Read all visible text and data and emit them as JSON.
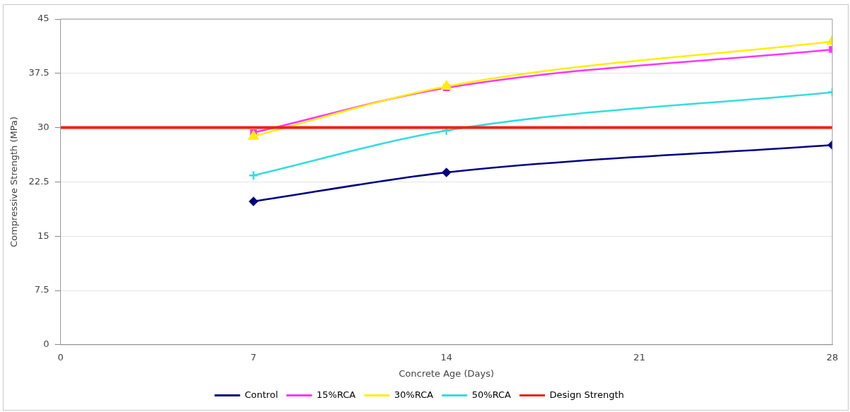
{
  "chart_data": {
    "type": "line",
    "xlabel": "Concrete Age (Days)",
    "ylabel": "Compressive Strength (MPa)",
    "x": [
      7,
      14,
      28
    ],
    "series": [
      {
        "name": "Control",
        "color": "#000080",
        "marker": "diamond",
        "values": [
          19.8,
          23.8,
          27.6
        ]
      },
      {
        "name": "15%RCA",
        "color": "#ff33ff",
        "marker": "square",
        "values": [
          29.3,
          35.5,
          40.8
        ]
      },
      {
        "name": "30%RCA",
        "color": "#ffee00",
        "marker": "triangle",
        "values": [
          28.8,
          35.7,
          41.9
        ]
      },
      {
        "name": "50%RCA",
        "color": "#33dddd",
        "marker": "cross",
        "values": [
          23.4,
          29.6,
          34.9
        ]
      },
      {
        "name": "Design Strength",
        "color": "#ee2211",
        "marker": "none",
        "x": [
          0,
          28
        ],
        "values": [
          30,
          30
        ]
      }
    ],
    "xlim": [
      0,
      28
    ],
    "xticks": [
      0,
      7,
      14,
      21,
      28
    ],
    "ylim": [
      0,
      45
    ],
    "yticks": [
      0,
      7.5,
      15,
      22.5,
      30,
      37.5,
      45
    ],
    "grid": "y",
    "legend": "bottom"
  }
}
